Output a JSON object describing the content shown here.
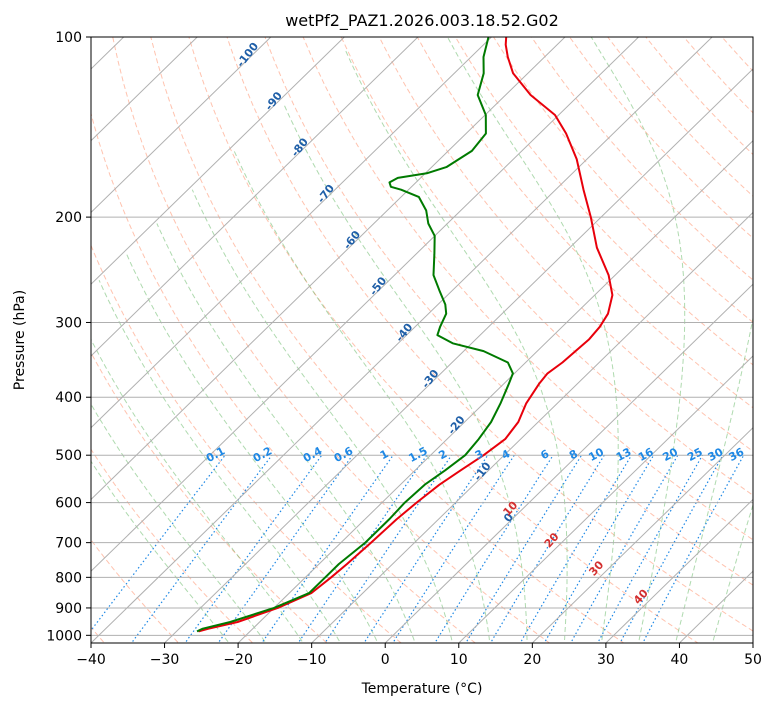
{
  "chart_data": {
    "type": "line",
    "title": "wetPf2_PAZ1.2026.003.18.52.G02",
    "xlabel": "Temperature (°C)",
    "ylabel": "Pressure (hPa)",
    "xlim": [
      -40,
      50
    ],
    "ylim": [
      1030,
      100
    ],
    "y_scale": "log",
    "x_ticks": [
      -40,
      -30,
      -20,
      -10,
      0,
      10,
      20,
      30,
      40,
      50
    ],
    "y_ticks": [
      1000,
      900,
      800,
      700,
      600,
      500,
      400,
      300,
      200,
      100
    ],
    "skew": "skew-T",
    "series": [
      {
        "name": "Temperature",
        "color": "#e8000b",
        "points": [
          [
            -27,
            985
          ],
          [
            -26,
            975
          ],
          [
            -23,
            950
          ],
          [
            -19.5,
            900
          ],
          [
            -17,
            850
          ],
          [
            -16.5,
            800
          ],
          [
            -16.2,
            760
          ],
          [
            -15.9,
            700
          ],
          [
            -15.7,
            640
          ],
          [
            -15.3,
            600
          ],
          [
            -14.7,
            560
          ],
          [
            -13.8,
            530
          ],
          [
            -12.8,
            500
          ],
          [
            -12.1,
            470
          ],
          [
            -12.7,
            440
          ],
          [
            -14.2,
            410
          ],
          [
            -15.2,
            380
          ],
          [
            -15.5,
            365
          ],
          [
            -15,
            350
          ],
          [
            -14.8,
            335
          ],
          [
            -14.6,
            320
          ],
          [
            -14.9,
            305
          ],
          [
            -15.6,
            290
          ],
          [
            -17.6,
            270
          ],
          [
            -20.9,
            250
          ],
          [
            -26.3,
            225
          ],
          [
            -31.4,
            200
          ],
          [
            -36.2,
            180
          ],
          [
            -41.4,
            160
          ],
          [
            -46.4,
            145
          ],
          [
            -50.5,
            135
          ],
          [
            -56.6,
            125
          ],
          [
            -62,
            115
          ],
          [
            -65,
            108
          ],
          [
            -67,
            103
          ],
          [
            -68,
            100
          ]
        ]
      },
      {
        "name": "Dewpoint",
        "color": "#007a00",
        "points": [
          [
            -27.2,
            985
          ],
          [
            -26.8,
            975
          ],
          [
            -24,
            950
          ],
          [
            -20,
            900
          ],
          [
            -17.3,
            850
          ],
          [
            -17.3,
            800
          ],
          [
            -17.3,
            760
          ],
          [
            -16.7,
            700
          ],
          [
            -16.7,
            640
          ],
          [
            -16.9,
            600
          ],
          [
            -16.7,
            560
          ],
          [
            -15.9,
            530
          ],
          [
            -15.3,
            500
          ],
          [
            -15.7,
            470
          ],
          [
            -16.4,
            440
          ],
          [
            -17.7,
            410
          ],
          [
            -19.3,
            380
          ],
          [
            -20.2,
            365
          ],
          [
            -22.4,
            350
          ],
          [
            -27.3,
            335
          ],
          [
            -32.6,
            325
          ],
          [
            -35.8,
            315
          ],
          [
            -36.6,
            305
          ],
          [
            -37.6,
            290
          ],
          [
            -39,
            280
          ],
          [
            -41.8,
            265
          ],
          [
            -44.7,
            250
          ],
          [
            -47.6,
            230
          ],
          [
            -50,
            215
          ],
          [
            -52.6,
            205
          ],
          [
            -54.7,
            195
          ],
          [
            -57.6,
            185
          ],
          [
            -61,
            180
          ],
          [
            -62.8,
            178
          ],
          [
            -63.6,
            175
          ],
          [
            -63.1,
            172
          ],
          [
            -59.8,
            169
          ],
          [
            -58,
            165
          ],
          [
            -56.8,
            155
          ],
          [
            -57.3,
            145
          ],
          [
            -59.9,
            135
          ],
          [
            -63.8,
            125
          ],
          [
            -66,
            115
          ],
          [
            -68.3,
            108
          ],
          [
            -70.4,
            100
          ]
        ]
      }
    ],
    "mixing_ratio_labels": [
      "0.1",
      "0.2",
      "0.4",
      "0.6",
      "1",
      "1.5",
      "2",
      "3",
      "4",
      "6",
      "8",
      "10",
      "13",
      "16",
      "20",
      "25",
      "30",
      "36"
    ],
    "dry_adiabat_labels": [
      "-100",
      "-90",
      "-80",
      "-70",
      "-60",
      "-50",
      "-40",
      "-30",
      "-20",
      "-10",
      "0"
    ],
    "moist_adiabat_labels": [
      "10",
      "20",
      "30",
      "40"
    ]
  }
}
